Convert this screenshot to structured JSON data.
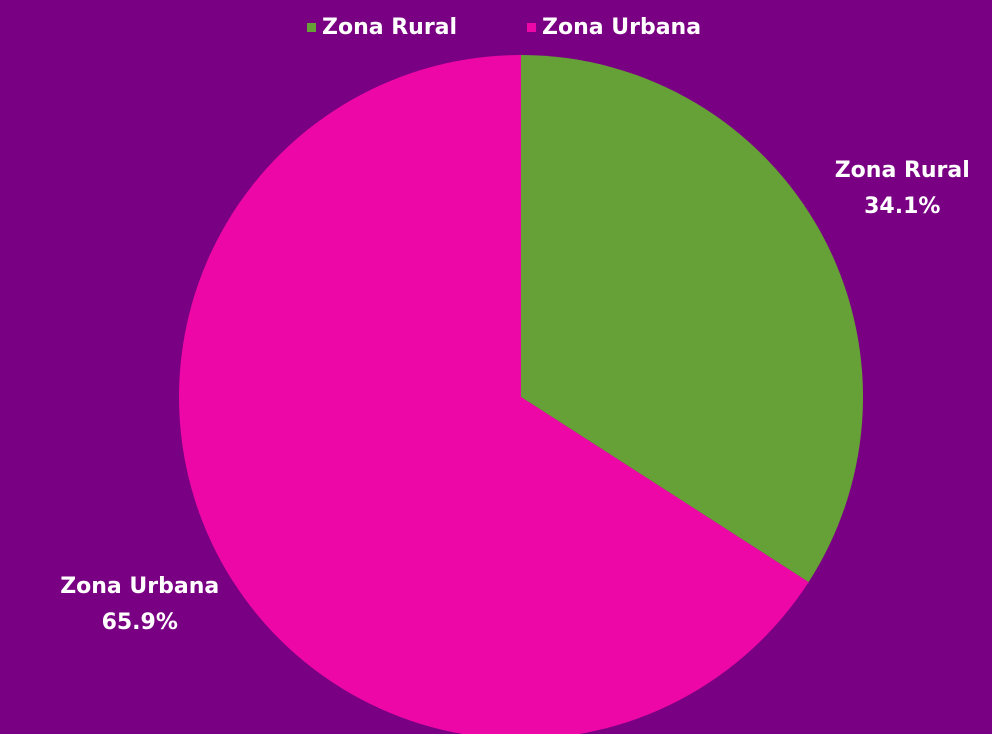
{
  "chart_data": {
    "type": "pie",
    "categories": [
      "Zona Rural",
      "Zona Urbana"
    ],
    "values": [
      34.1,
      65.9
    ],
    "value_labels": [
      "34.1%",
      "65.9%"
    ],
    "colors": [
      "#65a136",
      "#ee07a7"
    ],
    "legend": "top"
  }
}
